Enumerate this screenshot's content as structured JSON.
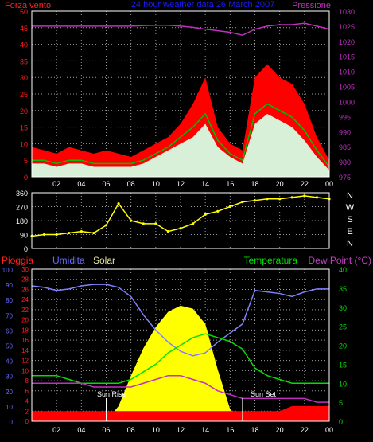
{
  "colors": {
    "background": "#000000",
    "frame": "#ffffff",
    "grid": "#9a9a9a",
    "wind_max": "#ff0000",
    "wind_avg": "#d8f0d8",
    "wind_line": "#00c000",
    "pressure": "#c030c0",
    "direction": "#ffff00",
    "humidity": "#8080ff",
    "solar": "#ffff00",
    "temperature": "#00e000",
    "dewpoint": "#c030c0",
    "rain": "#ff0000",
    "title": "#1a1aff",
    "left_axis_red": "#ff2020",
    "left_axis_blue": "#6a6aff",
    "right_axis_green": "#00e000",
    "right_axis_purple": "#c040c0",
    "solar_label": "#e6e6a0",
    "compass": "#ffffff"
  },
  "chart_data": [
    {
      "type": "area",
      "title": "24 hour weather data  26 March 2007",
      "left_label": "Forza vento",
      "right_label": "Pressione",
      "x_ticks": [
        "02",
        "04",
        "06",
        "08",
        "10",
        "12",
        "14",
        "16",
        "18",
        "20",
        "22",
        "00"
      ],
      "x": [
        0,
        1,
        2,
        3,
        4,
        5,
        6,
        7,
        8,
        9,
        10,
        11,
        12,
        13,
        14,
        15,
        16,
        17,
        18,
        19,
        20,
        21,
        22,
        23,
        24
      ],
      "ylim_left": [
        0,
        50
      ],
      "yticks_left": [
        "0",
        "5",
        "10",
        "15",
        "20",
        "25",
        "30",
        "35",
        "40",
        "45",
        "50"
      ],
      "ylim_right": [
        975,
        1030
      ],
      "yticks_right": [
        "975",
        "980",
        "985",
        "990",
        "995",
        "1000",
        "1005",
        "1010",
        "1015",
        "1020",
        "1025",
        "1030"
      ],
      "grid": true,
      "series": [
        {
          "role": "wind_max",
          "values": [
            9,
            8,
            7,
            9,
            8,
            7,
            8,
            7,
            6,
            8,
            10,
            12,
            16,
            22,
            30,
            15,
            10,
            8,
            30,
            34,
            30,
            28,
            22,
            12,
            5
          ]
        },
        {
          "role": "wind_avg",
          "values": [
            4,
            4,
            3,
            4,
            4,
            3,
            3,
            3,
            3,
            4,
            6,
            8,
            10,
            12,
            16,
            9,
            6,
            4,
            16,
            19,
            17,
            15,
            11,
            6,
            2
          ]
        },
        {
          "role": "wind_line",
          "values": [
            5,
            5,
            4,
            5,
            5,
            4,
            4,
            4,
            4,
            5,
            7,
            9,
            12,
            15,
            19,
            11,
            7,
            5,
            19,
            22,
            20,
            18,
            14,
            8,
            3
          ]
        },
        {
          "role": "pressure",
          "values": [
            1025,
            1025,
            1025,
            1025,
            1025,
            1025,
            1025,
            1025,
            1025,
            1025.2,
            1025.3,
            1025.3,
            1025,
            1024.6,
            1024,
            1023.5,
            1023,
            1022,
            1024,
            1025,
            1025.5,
            1025.5,
            1026,
            1025,
            1024
          ]
        }
      ]
    },
    {
      "type": "scatter",
      "title": "",
      "x": [
        0,
        1,
        2,
        3,
        4,
        5,
        6,
        7,
        8,
        9,
        10,
        11,
        12,
        13,
        14,
        15,
        16,
        17,
        18,
        19,
        20,
        21,
        22,
        23,
        24
      ],
      "values": [
        80,
        90,
        90,
        100,
        110,
        100,
        150,
        290,
        180,
        160,
        160,
        110,
        130,
        160,
        220,
        240,
        270,
        300,
        310,
        320,
        320,
        330,
        340,
        330,
        320
      ],
      "ylim": [
        0,
        360
      ],
      "yticks": [
        "0",
        "90",
        "180",
        "270",
        "360"
      ],
      "compass": [
        "N",
        "W",
        "S",
        "E",
        "N"
      ],
      "x_ticks": [
        "02",
        "04",
        "06",
        "08",
        "10",
        "12",
        "14",
        "16",
        "18",
        "20",
        "22",
        "00"
      ]
    },
    {
      "type": "line",
      "labels": {
        "rain": "Pioggia",
        "humidity": "Umidita",
        "solar": "Solar",
        "temperature": "Temperatura",
        "dewpoint": "Dew Point (°C)"
      },
      "annotations": [
        "Sun Rise",
        "Sun Set"
      ],
      "x_ticks": [
        "02",
        "04",
        "06",
        "08",
        "10",
        "12",
        "14",
        "16",
        "18",
        "20",
        "22",
        "00"
      ],
      "yticks_humidity": [
        "0",
        "10",
        "20",
        "30",
        "40",
        "50",
        "60",
        "70",
        "80",
        "90",
        "100"
      ],
      "yticks_rain": [
        "0",
        "2",
        "4",
        "6",
        "8",
        "10",
        "12",
        "14",
        "16",
        "18",
        "20",
        "22",
        "24",
        "26",
        "28",
        "30"
      ],
      "yticks_temp": [
        "0",
        "5",
        "10",
        "15",
        "20",
        "25",
        "30",
        "35",
        "40"
      ],
      "ylim_humidity": [
        0,
        100
      ],
      "ylim_rain": [
        0,
        30
      ],
      "ylim_temp": [
        0,
        40
      ],
      "x": [
        0,
        1,
        2,
        3,
        4,
        5,
        6,
        7,
        8,
        9,
        10,
        11,
        12,
        13,
        14,
        15,
        16,
        17,
        18,
        19,
        20,
        21,
        22,
        23,
        24
      ],
      "series": [
        {
          "role": "humidity",
          "values": [
            89,
            88,
            86,
            87,
            89,
            90,
            90,
            88,
            82,
            70,
            60,
            52,
            46,
            43,
            45,
            52,
            58,
            64,
            86,
            85,
            84,
            82,
            85,
            87,
            87
          ]
        },
        {
          "role": "temperature",
          "values": [
            12,
            12,
            12,
            11,
            10,
            10,
            10,
            10,
            11,
            13,
            15,
            18,
            20,
            22,
            23,
            22,
            21,
            19,
            14,
            12,
            11,
            10,
            10,
            10,
            10
          ]
        },
        {
          "role": "dewpoint",
          "values": [
            10,
            10,
            10,
            10,
            10,
            9,
            9,
            9,
            9,
            10,
            11,
            12,
            12,
            11,
            10,
            8,
            7,
            6,
            6,
            6,
            6,
            6,
            6,
            5,
            5
          ]
        },
        {
          "role": "solar",
          "values": [
            0,
            0,
            0,
            0,
            0,
            0,
            0,
            100,
            300,
            480,
            620,
            720,
            760,
            740,
            640,
            340,
            80,
            0,
            0,
            0,
            0,
            0,
            0,
            0,
            0
          ]
        },
        {
          "role": "rain",
          "values": [
            2,
            2,
            2,
            2,
            2,
            2,
            2,
            2,
            2,
            2,
            2,
            2,
            2,
            2,
            2,
            2,
            2,
            2,
            2,
            2,
            2,
            3,
            3,
            3,
            3
          ]
        }
      ]
    }
  ]
}
